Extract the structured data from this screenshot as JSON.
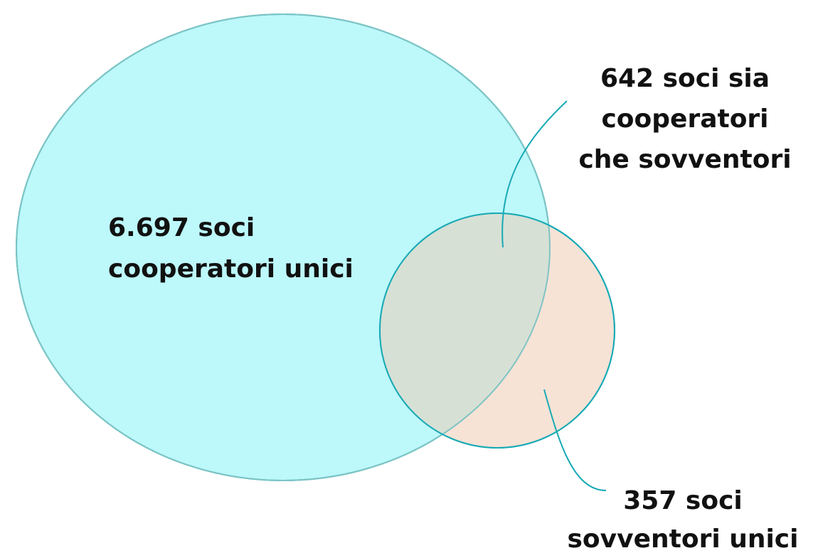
{
  "labels": [
    {
      "lines": [
        "6.697 soci",
        "cooperatori unici"
      ]
    },
    {
      "lines": [
        "642 soci sia",
        "cooperatori",
        "che sovventori"
      ]
    },
    {
      "lines": [
        "357 soci",
        "sovventori unici"
      ]
    }
  ]
}
